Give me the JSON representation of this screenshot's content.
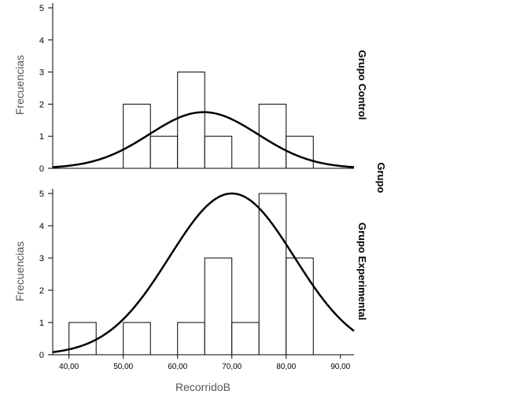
{
  "chart_data": {
    "type": "bar",
    "xlabel": "RecorridoB",
    "ylabel": "Frecuencias",
    "group_label": "Grupo",
    "x_ticks": [
      "40,00",
      "50,00",
      "60,00",
      "70,00",
      "80,00",
      "90,00"
    ],
    "x_tick_values": [
      40,
      50,
      60,
      70,
      80,
      90
    ],
    "xlim": [
      37,
      92.5
    ],
    "ylim": [
      0,
      5
    ],
    "y_ticks": [
      "0",
      "1",
      "2",
      "3",
      "4",
      "5"
    ],
    "bin_width": 5,
    "panels": [
      {
        "name": "Grupo Control",
        "bin_starts": [
          40,
          45,
          50,
          55,
          60,
          65,
          70,
          75,
          80
        ],
        "frequencies": [
          0,
          0,
          2,
          1,
          3,
          1,
          0,
          2,
          1
        ],
        "normal_curve": {
          "mean": 64.8,
          "sd": 10.0,
          "peak": 1.75
        }
      },
      {
        "name": "Grupo Experimental",
        "bin_starts": [
          40,
          45,
          50,
          55,
          60,
          65,
          70,
          75,
          80
        ],
        "frequencies": [
          1,
          0,
          1,
          0,
          1,
          3,
          1,
          5,
          3
        ],
        "normal_curve": {
          "mean": 70.0,
          "sd": 11.5,
          "peak": 5.0
        }
      }
    ]
  }
}
